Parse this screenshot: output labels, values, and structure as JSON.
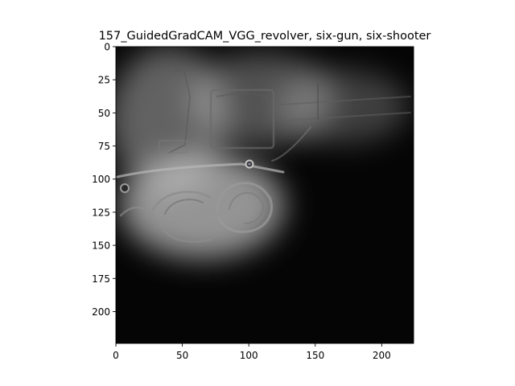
{
  "chart_data": {
    "type": "heatmap",
    "title": "157_GuidedGradCAM_VGG_revolver, six-gun, six-shooter",
    "xlabel": "",
    "ylabel": "",
    "xlim": [
      0,
      224
    ],
    "ylim": [
      224,
      0
    ],
    "x_ticks": [
      0,
      50,
      100,
      150,
      200
    ],
    "y_ticks": [
      0,
      25,
      50,
      75,
      100,
      125,
      150,
      175,
      200
    ],
    "x_tick_labels": [
      "0",
      "50",
      "100",
      "150",
      "200"
    ],
    "y_tick_labels": [
      "0",
      "25",
      "50",
      "75",
      "100",
      "125",
      "150",
      "175",
      "200"
    ],
    "grid": false,
    "legend": "none",
    "colormap": "grayscale",
    "background_color": "#050505",
    "highlight_color": "#d8d8d8",
    "regions": [
      {
        "cx": 65,
        "cy": 120,
        "rx": 62,
        "ry": 40,
        "intensity": 0.85
      },
      {
        "cx": 40,
        "cy": 55,
        "rx": 45,
        "ry": 55,
        "intensity": 0.55
      },
      {
        "cx": 110,
        "cy": 40,
        "rx": 55,
        "ry": 35,
        "intensity": 0.45
      },
      {
        "cx": 170,
        "cy": 45,
        "rx": 50,
        "ry": 28,
        "intensity": 0.35
      }
    ]
  }
}
